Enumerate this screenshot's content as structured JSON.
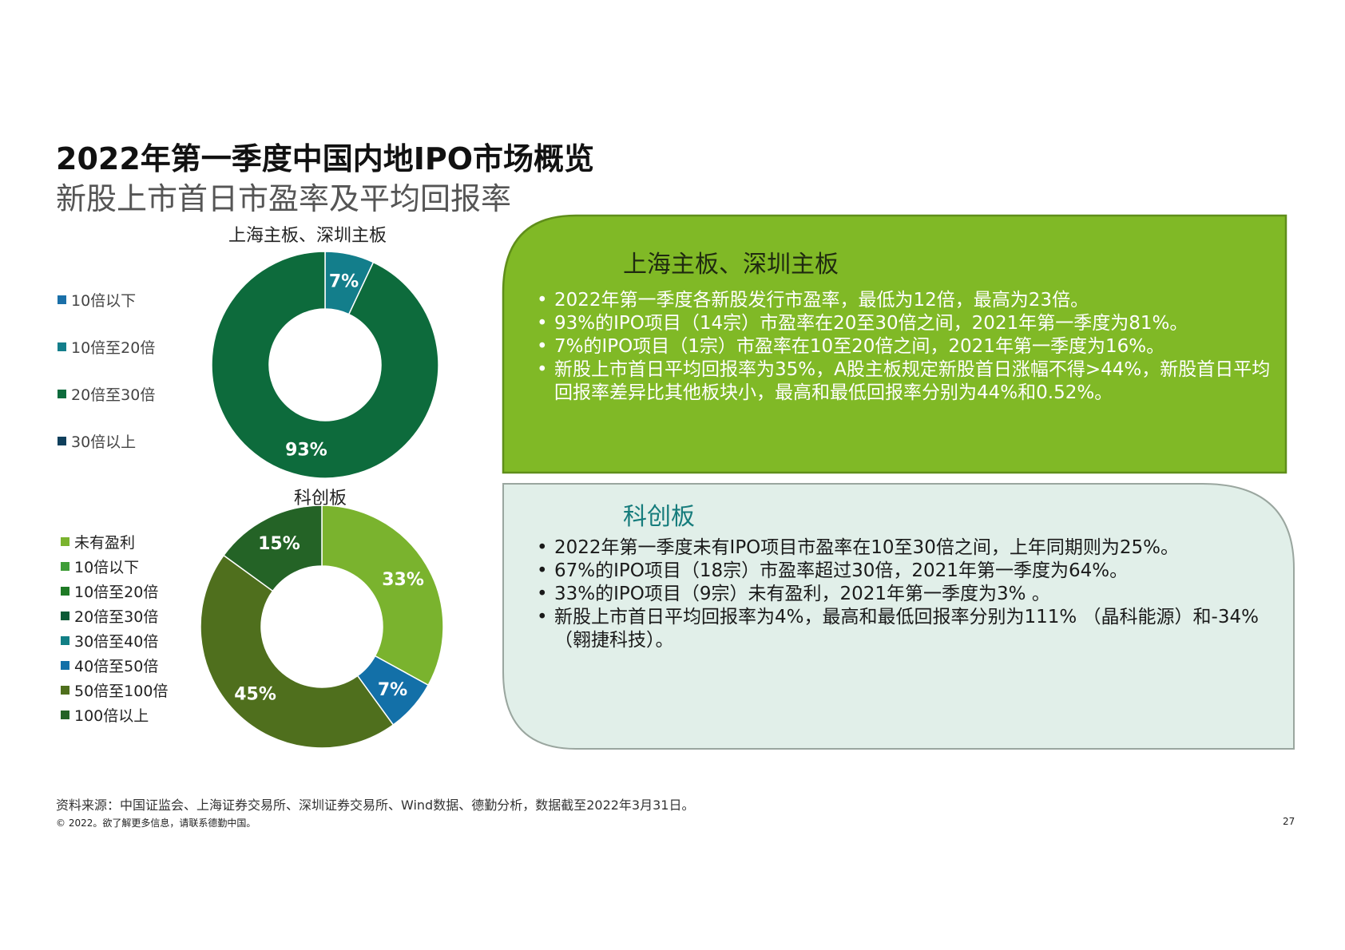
{
  "title": {
    "main": "2022年第一季度中国内地IPO市场概览",
    "sub": "新股上市首日市盈率及平均回报率"
  },
  "chart_data": [
    {
      "type": "pie",
      "title": "上海主板、深圳主板",
      "categories": [
        "10倍以下",
        "10倍至20倍",
        "20倍至30倍",
        "30倍以上"
      ],
      "values": [
        0,
        7,
        93,
        0
      ],
      "data_labels": [
        "",
        "7%",
        "93%",
        ""
      ],
      "colors": [
        "#1a6fa8",
        "#137e8b",
        "#0d6b3c",
        "#0f3f5c"
      ],
      "legend_position": "left"
    },
    {
      "type": "pie",
      "title": "科创板",
      "categories": [
        "未有盈利",
        "10倍以下",
        "10倍至20倍",
        "20倍至30倍",
        "30倍至40倍",
        "40倍至50倍",
        "50倍至100倍",
        "100倍以上"
      ],
      "values": [
        33,
        0,
        0,
        0,
        0,
        7,
        45,
        15
      ],
      "data_labels": [
        "33%",
        "",
        "",
        "",
        "",
        "7%",
        "45%",
        "15%"
      ],
      "colors": [
        "#7ab32e",
        "#3e9d37",
        "#1e7a25",
        "#0b5a35",
        "#117f85",
        "#1370a8",
        "#4f6f1d",
        "#246326"
      ],
      "legend_position": "left"
    }
  ],
  "box1": {
    "title": "上海主板、深圳主板",
    "bullets": [
      "2022年第一季度各新股发行市盈率，最低为12倍，最高为23倍。",
      "93%的IPO项目（14宗）市盈率在20至30倍之间，2021年第一季度为81%。",
      "7%的IPO项目（1宗）市盈率在10至20倍之间，2021年第一季度为16%。",
      "新股上市首日平均回报率为35%，A股主板规定新股首日涨幅不得>44%，新股首日平均回报率差异比其他板块小，最高和最低回报率分别为44%和0.52%。"
    ]
  },
  "box2": {
    "title": "科创板",
    "bullets": [
      "2022年第一季度未有IPO项目市盈率在10至30倍之间，上年同期则为25%。",
      "67%的IPO项目（18宗）市盈率超过30倍，2021年第一季度为64%。",
      "33%的IPO项目（9宗）未有盈利，2021年第一季度为3% 。",
      "新股上市首日平均回报率为4%，最高和最低回报率分别为111% （晶科能源）和-34% （翱捷科技）。"
    ]
  },
  "footer": {
    "source": "资料来源：中国证监会、上海证券交易所、深圳证券交易所、Wind数据、德勤分析，数据截至2022年3月31日。",
    "copyright": "© 2022。欲了解更多信息，请联系德勤中国。",
    "page_number": "27"
  }
}
